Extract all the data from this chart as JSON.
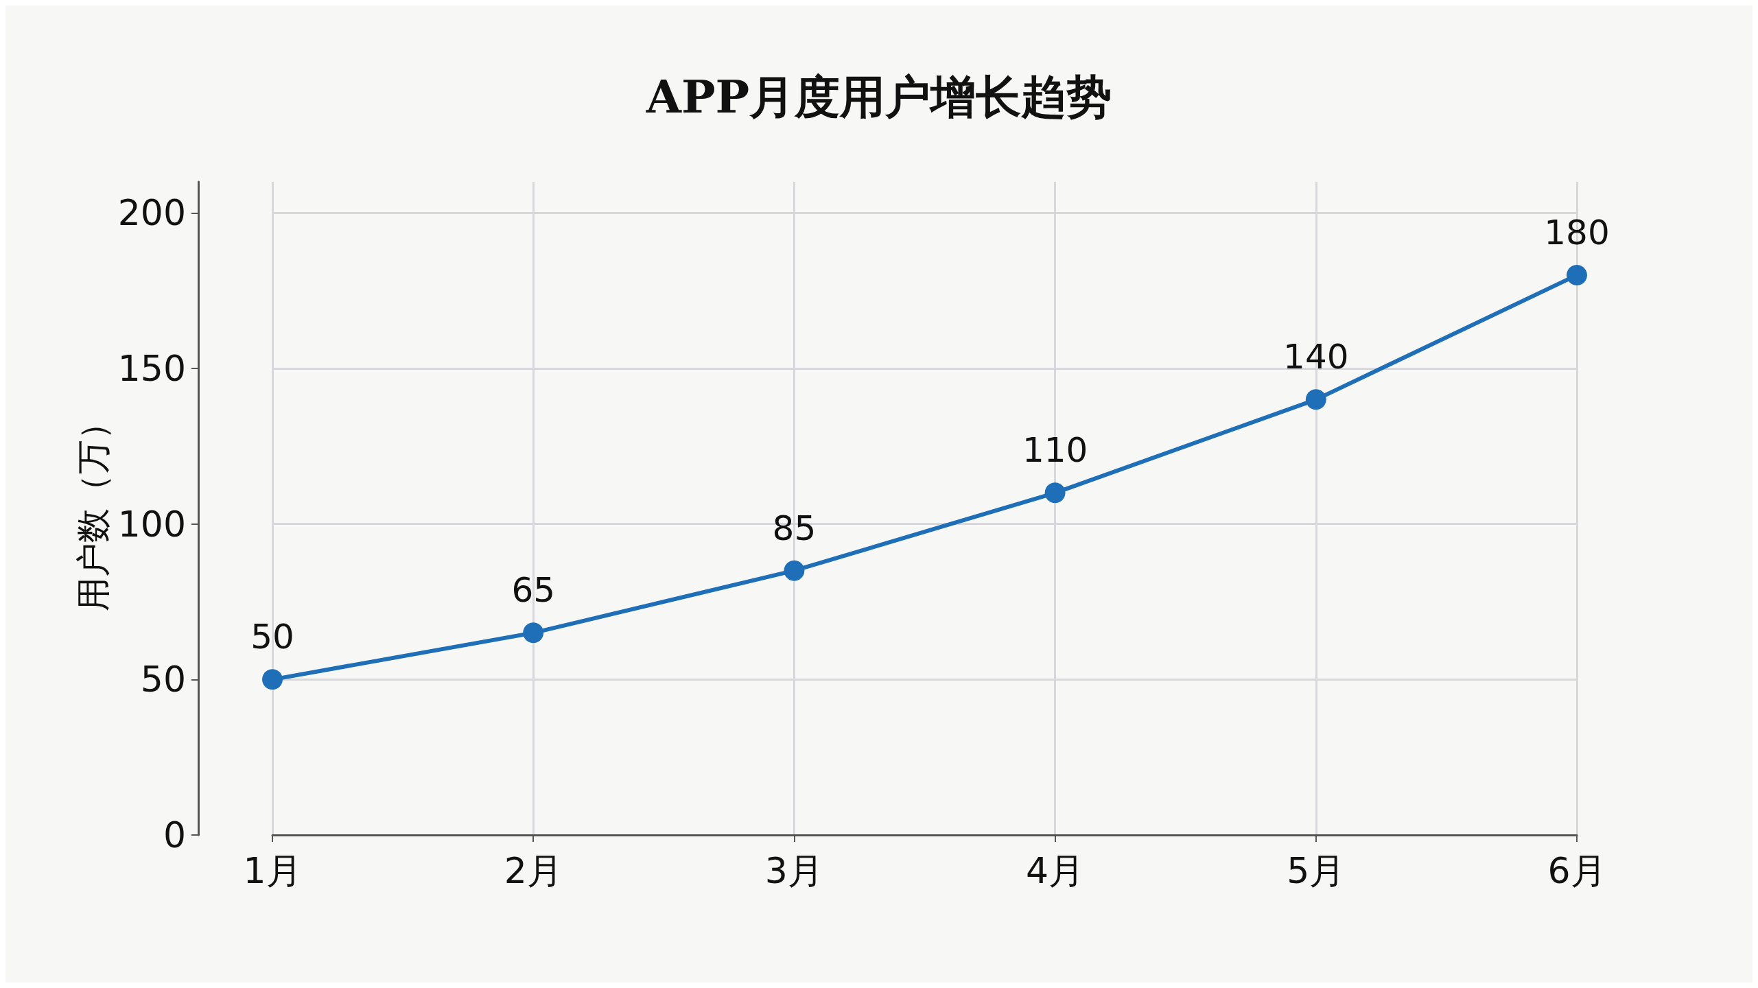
{
  "chart_data": {
    "type": "line",
    "title": "APP月度用户增长趋势",
    "ylabel": "用户数（万）",
    "categories": [
      "1月",
      "2月",
      "3月",
      "4月",
      "5月",
      "6月"
    ],
    "series": [
      {
        "color": "#1f6fb8",
        "values": [
          50,
          65,
          85,
          110,
          140,
          180
        ]
      }
    ],
    "ylim": [
      0,
      210
    ],
    "yticks": [
      0,
      50,
      100,
      150,
      200
    ],
    "grid": true,
    "marker": "circle",
    "line_style": "solid",
    "data_labels": true
  }
}
